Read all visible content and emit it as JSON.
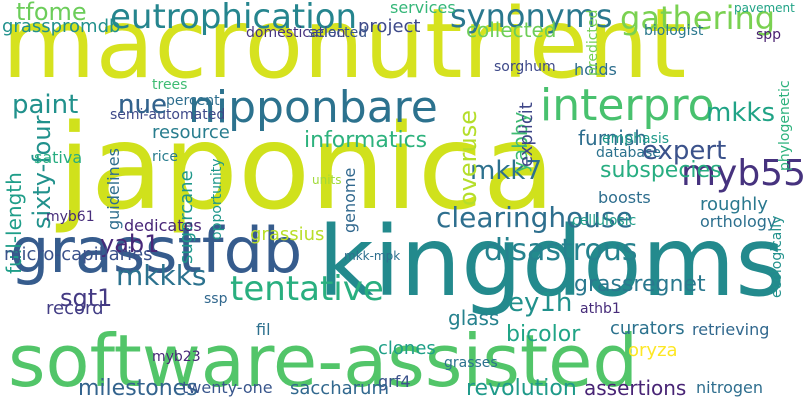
{
  "words": [
    {
      "text": "macronutrient",
      "color": "#d6e21f"
    },
    {
      "text": "japonica",
      "color": "#d0e11c"
    },
    {
      "text": "kingdoms",
      "color": "#238a8d"
    },
    {
      "text": "software-assisted",
      "color": "#52c569"
    },
    {
      "text": "grasstfdb",
      "color": "#365c8d"
    },
    {
      "text": "nipponbare",
      "color": "#2c728e"
    },
    {
      "text": "eutrophication",
      "color": "#25858e"
    },
    {
      "text": "interpro",
      "color": "#48c16e"
    },
    {
      "text": "tentative",
      "color": "#29af7f"
    },
    {
      "text": "clearinghouse",
      "color": "#2e6f8e"
    },
    {
      "text": "disastrous",
      "color": "#26828e"
    },
    {
      "text": "myb55",
      "color": "#46327e"
    },
    {
      "text": "synonyms",
      "color": "#2a788e"
    },
    {
      "text": "gathering",
      "color": "#7ad151"
    },
    {
      "text": "grassregnet",
      "color": "#2a788e"
    },
    {
      "text": "expert",
      "color": "#3b528b"
    },
    {
      "text": "mkk7",
      "color": "#2d718e"
    },
    {
      "text": "mkks",
      "color": "#20a386"
    },
    {
      "text": "mkkks",
      "color": "#2c728e"
    },
    {
      "text": "sgt1",
      "color": "#443a83"
    },
    {
      "text": "ey1h",
      "color": "#21918c"
    },
    {
      "text": "yab1",
      "color": "#482878"
    },
    {
      "text": "nue",
      "color": "#33638d"
    },
    {
      "text": "paint",
      "color": "#21918c"
    },
    {
      "text": "tfome",
      "color": "#6ccd5a"
    },
    {
      "text": "grasspromdb",
      "color": "#21918c"
    },
    {
      "text": "collected",
      "color": "#6ece58"
    },
    {
      "text": "project",
      "color": "#3e4a89"
    },
    {
      "text": "services",
      "color": "#35b779"
    },
    {
      "text": "domestication",
      "color": "#46337f"
    },
    {
      "text": "semi-automated",
      "color": "#3e4989"
    },
    {
      "text": "selected",
      "color": "#39568c"
    },
    {
      "text": "sixty-four",
      "color": "#21918c"
    },
    {
      "text": "overuse",
      "color": "#b5de2b"
    },
    {
      "text": "yabby",
      "color": "#3fbc73"
    },
    {
      "text": "informatics",
      "color": "#2db27d"
    },
    {
      "text": "resource",
      "color": "#287d8e"
    },
    {
      "text": "full-length",
      "color": "#1f9e89"
    },
    {
      "text": "micro-capillaries",
      "color": "#3b528b"
    },
    {
      "text": "guidelines",
      "color": "#2e6e8e"
    },
    {
      "text": "sugarcane",
      "color": "#1f988b"
    },
    {
      "text": "furnish",
      "color": "#2e6e8e"
    },
    {
      "text": "subspecies",
      "color": "#27ad81"
    },
    {
      "text": "grassius",
      "color": "#b8de29"
    },
    {
      "text": "dedicates",
      "color": "#482677"
    },
    {
      "text": "record",
      "color": "#433e85"
    },
    {
      "text": "bicolor",
      "color": "#20a486"
    },
    {
      "text": "glass",
      "color": "#26828e"
    },
    {
      "text": "milestones",
      "color": "#33638d"
    },
    {
      "text": "grf4",
      "color": "#3b528b"
    },
    {
      "text": "revolution",
      "color": "#1f9a8a"
    },
    {
      "text": "assertions",
      "color": "#482475"
    },
    {
      "text": "saccharum",
      "color": "#31688e"
    },
    {
      "text": "twenty-one",
      "color": "#39568c"
    },
    {
      "text": "nitrogen",
      "color": "#2e6e8e"
    },
    {
      "text": "curators",
      "color": "#2c728e"
    },
    {
      "text": "retrieving",
      "color": "#31688e"
    },
    {
      "text": "athb1",
      "color": "#472c7a"
    },
    {
      "text": "oryza",
      "color": "#fde725"
    },
    {
      "text": "clones",
      "color": "#1fa088"
    },
    {
      "text": "roughly",
      "color": "#2a788e"
    },
    {
      "text": "orthology",
      "color": "#2d708e"
    },
    {
      "text": "cellulosic",
      "color": "#1f9e89"
    },
    {
      "text": "boosts",
      "color": "#2e6e8e"
    },
    {
      "text": "database",
      "color": "#2c728e"
    },
    {
      "text": "emphasis",
      "color": "#1f9a8a"
    },
    {
      "text": "myb61",
      "color": "#472d7b"
    },
    {
      "text": "genome",
      "color": "#31688e"
    },
    {
      "text": "sativa",
      "color": "#27ad81"
    },
    {
      "text": "rice",
      "color": "#287c8e"
    },
    {
      "text": "percent",
      "color": "#2e6e8e"
    },
    {
      "text": "trees",
      "color": "#3fbc73"
    },
    {
      "text": "holds",
      "color": "#2e6f8e"
    },
    {
      "text": "explicit",
      "color": "#3f4788"
    },
    {
      "text": "sorghum",
      "color": "#3e4989"
    },
    {
      "text": "biologist",
      "color": "#2a788e"
    },
    {
      "text": "spp",
      "color": "#481f70"
    },
    {
      "text": "pavement",
      "color": "#20a386"
    },
    {
      "text": "mkk-mpk",
      "color": "#2e6f8e"
    },
    {
      "text": "ssp",
      "color": "#31688e"
    },
    {
      "text": "fil",
      "color": "#2d708e"
    },
    {
      "text": "units",
      "color": "#a0da39"
    },
    {
      "text": "opportunity",
      "color": "#1f988b"
    },
    {
      "text": "ecologically",
      "color": "#21918c"
    },
    {
      "text": "phylogenetic",
      "color": "#2db27d"
    },
    {
      "text": "myb23",
      "color": "#482878"
    },
    {
      "text": "predicted",
      "color": "#75d054"
    },
    {
      "text": "grasses",
      "color": "#2c728e"
    },
    {
      "text": "nue",
      "color": "#33638d"
    }
  ]
}
